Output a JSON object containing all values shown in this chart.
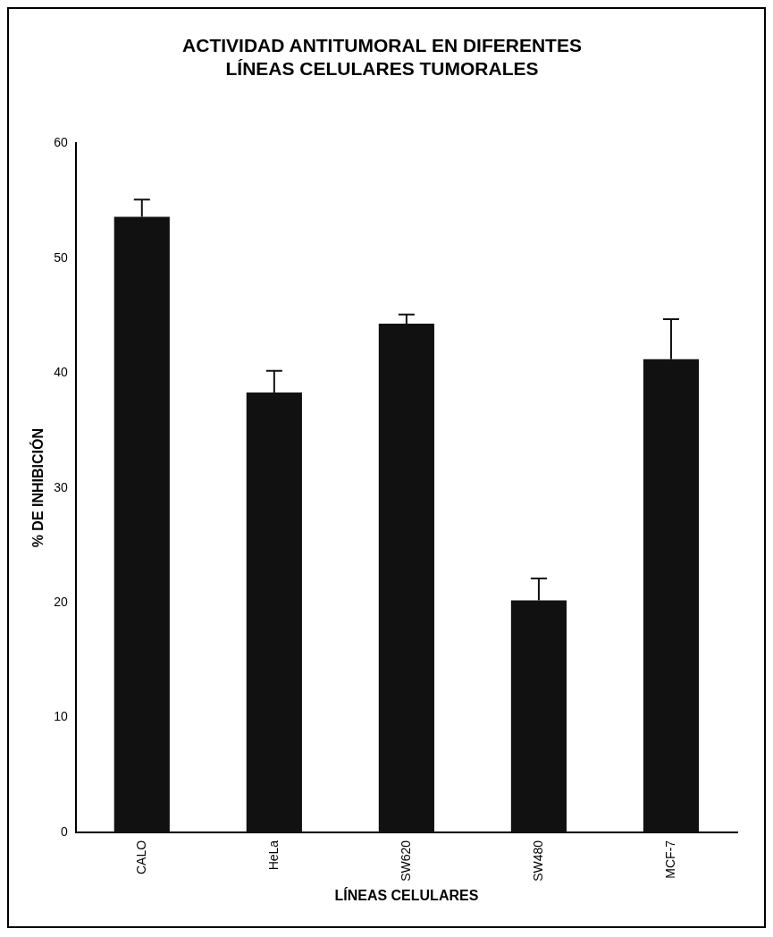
{
  "chart_data": {
    "type": "bar",
    "title": "ACTIVIDAD ANTITUMORAL EN DIFERENTES LÍNEAS CELULARES TUMORALES",
    "xlabel": "LÍNEAS CELULARES",
    "ylabel": "% DE INHIBICIÓN",
    "categories": [
      "CALO",
      "HeLa",
      "SW620",
      "SW480",
      "MCF-7"
    ],
    "values": [
      53.6,
      38.3,
      44.3,
      20.2,
      41.2
    ],
    "errors": [
      [
        53.6,
        55.1
      ],
      [
        38.3,
        40.2
      ],
      [
        44.3,
        45.1
      ],
      [
        20.2,
        22.1
      ],
      [
        41.2,
        44.7
      ]
    ],
    "color": "#111111",
    "ylim": [
      0,
      60
    ],
    "yticks": [
      0,
      10,
      20,
      30,
      40,
      50,
      60
    ],
    "grid": false,
    "legend": false
  }
}
